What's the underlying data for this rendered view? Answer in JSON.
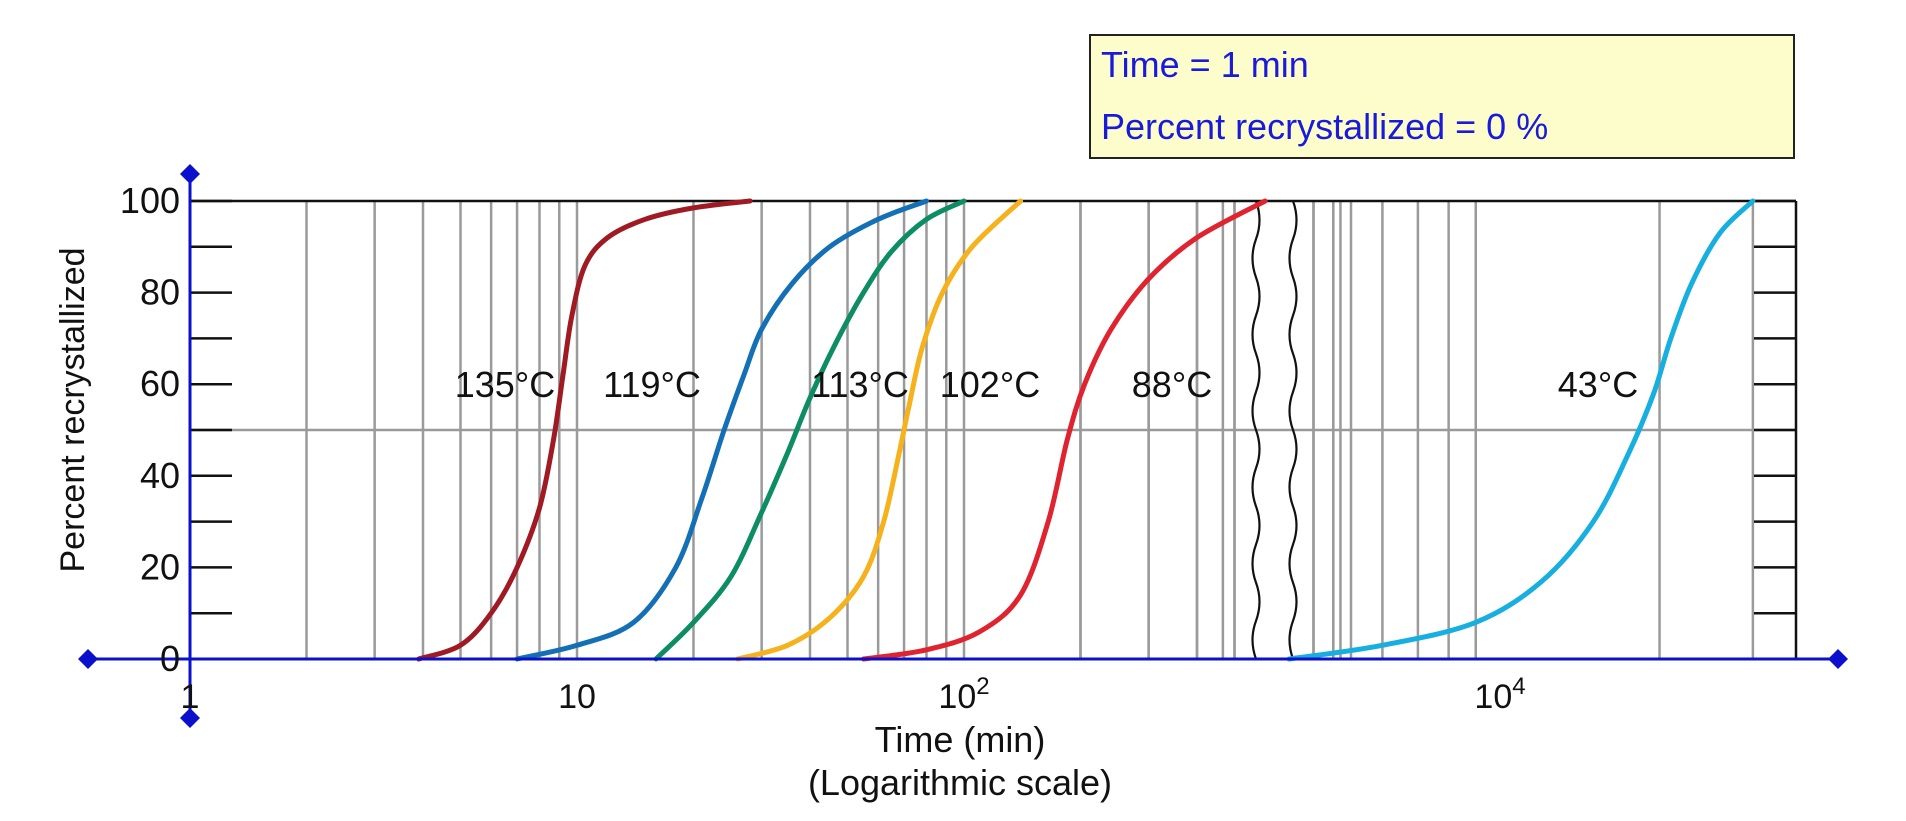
{
  "info": {
    "time_label": "Time = ",
    "time_value": "1",
    "time_unit": " min",
    "percent_label": "Percent recrystallized = ",
    "percent_value": "0",
    "percent_unit": " %"
  },
  "chart_data": {
    "type": "line",
    "xscale": "log",
    "axis_break": "between 10^3 and 10^3.5",
    "xlabel": "Time (min)",
    "xlabel_sub": "(Logarithmic scale)",
    "ylabel": "Percent recrystallized",
    "ylim": [
      0,
      100
    ],
    "yticks": [
      "0",
      "20",
      "40",
      "60",
      "80",
      "100"
    ],
    "xticks": [
      {
        "pos": 1,
        "base": "1",
        "exp": ""
      },
      {
        "pos": 10,
        "base": "10",
        "exp": ""
      },
      {
        "pos": 100,
        "base": "10",
        "exp": "2"
      },
      {
        "pos": 10000,
        "base": "10",
        "exp": "4"
      }
    ],
    "grid": true,
    "series": [
      {
        "label": "135°C",
        "color": "#a01a23",
        "x": [
          3.9,
          5,
          6,
          7,
          8,
          8.7,
          9.2,
          9.7,
          10.5,
          12,
          15,
          20,
          28
        ],
        "y": [
          0,
          3,
          10,
          20,
          33,
          48,
          62,
          75,
          86,
          92,
          96,
          98.5,
          100
        ]
      },
      {
        "label": "119°C",
        "color": "#1470b4",
        "x": [
          7,
          10,
          14,
          18,
          21,
          24,
          27,
          30,
          36,
          45,
          60,
          80
        ],
        "y": [
          0,
          3,
          8,
          20,
          35,
          50,
          62,
          72,
          82,
          90,
          96,
          100
        ]
      },
      {
        "label": "113°C",
        "color": "#0c8d63",
        "x": [
          16,
          20,
          25,
          30,
          35,
          40,
          46,
          55,
          65,
          80,
          100
        ],
        "y": [
          0,
          8,
          18,
          32,
          45,
          57,
          68,
          80,
          89,
          96,
          100
        ]
      },
      {
        "label": "102°C",
        "color": "#f6b21c",
        "x": [
          26,
          35,
          45,
          55,
          62,
          68,
          72,
          78,
          88,
          105,
          140
        ],
        "y": [
          0,
          3,
          9,
          18,
          30,
          45,
          55,
          68,
          80,
          90,
          100
        ]
      },
      {
        "label": "88°C",
        "color": "#df2430",
        "x": [
          55,
          80,
          110,
          140,
          165,
          185,
          205,
          240,
          300,
          400,
          600
        ],
        "y": [
          0,
          2,
          6,
          14,
          30,
          48,
          60,
          72,
          83,
          92,
          100
        ]
      },
      {
        "label": "43°C",
        "color": "#17aee0",
        "x": [
          4000,
          6000,
          9000,
          12000,
          15000,
          17500,
          19500,
          21000,
          23000,
          26000,
          30000
        ],
        "y": [
          0,
          3,
          8,
          17,
          30,
          45,
          58,
          70,
          82,
          93,
          100
        ]
      }
    ],
    "colors": {
      "axis": "#0a10cc",
      "grid": "#9a9a9a",
      "frame": "#111111",
      "box_fill": "#fdfdcc",
      "box_text": "#1a1adb"
    }
  }
}
